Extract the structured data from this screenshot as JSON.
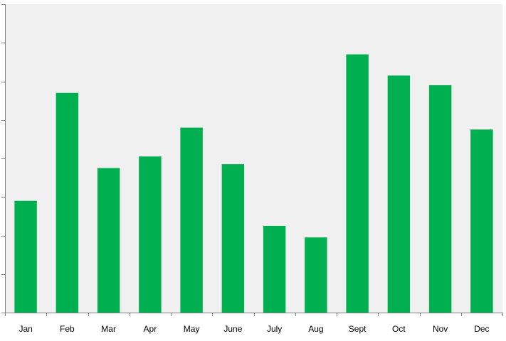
{
  "chart_data": {
    "type": "bar",
    "title": "",
    "xlabel": "",
    "ylabel": "",
    "categories": [
      "Jan",
      "Feb",
      "Mar",
      "Apr",
      "May",
      "June",
      "July",
      "Aug",
      "Sept",
      "Oct",
      "Nov",
      "Dec"
    ],
    "values": [
      2.9,
      5.7,
      3.75,
      4.05,
      4.8,
      3.85,
      2.25,
      1.95,
      6.7,
      6.15,
      5.9,
      4.75
    ],
    "ylim": [
      0,
      8
    ],
    "y_tick_count": 8,
    "y_tick_labels_shown": false,
    "grid": false,
    "legend": "none",
    "colors": {
      "bar": "#00b050",
      "plot_background": "#f0f0f0",
      "axis": "#808080"
    }
  }
}
